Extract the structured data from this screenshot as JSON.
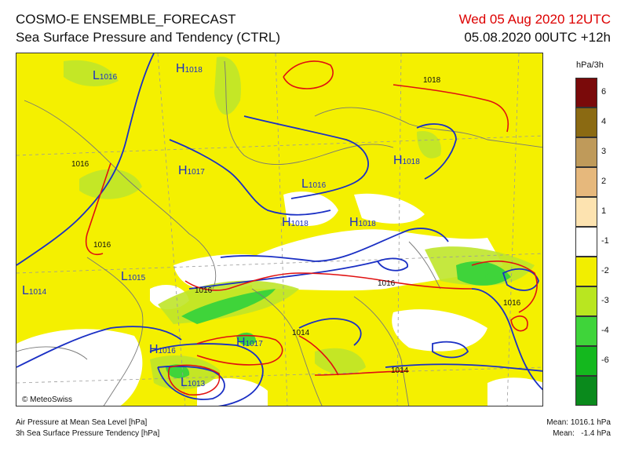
{
  "header": {
    "title": "COSMO-E ENSEMBLE_FORECAST",
    "subtitle": "Sea Surface Pressure and Tendency (CTRL)",
    "valid_time": "Wed 05 Aug 2020 12UTC",
    "run_time": "05.08.2020 00UTC +12h",
    "valid_time_color": "#dd0000"
  },
  "legend": {
    "title": "hPa/3h",
    "classes": [
      {
        "label": "6",
        "color": "#7a0a0a"
      },
      {
        "label": "4",
        "color": "#8b6a12"
      },
      {
        "label": "3",
        "color": "#bf9a5a"
      },
      {
        "label": "2",
        "color": "#e6b87c"
      },
      {
        "label": "1",
        "color": "#fde3b0"
      },
      {
        "label": "-1",
        "color": "#ffffff"
      },
      {
        "label": "-2",
        "color": "#f2ee00"
      },
      {
        "label": "-3",
        "color": "#b9e620"
      },
      {
        "label": "-4",
        "color": "#3fd43a"
      },
      {
        "label": "-6",
        "color": "#14b81e"
      },
      {
        "label": "",
        "color": "#0a8a1c"
      }
    ]
  },
  "map": {
    "pressure_labels": [
      {
        "kind": "H",
        "value": "1018"
      },
      {
        "kind": "L",
        "value": "1016"
      },
      {
        "kind": "H",
        "value": "1017"
      },
      {
        "kind": "L",
        "value": "1016"
      },
      {
        "kind": "H",
        "value": "1018"
      },
      {
        "kind": "H",
        "value": "1018"
      },
      {
        "kind": "H",
        "value": "1018"
      },
      {
        "kind": "L",
        "value": "1015"
      },
      {
        "kind": "L",
        "value": "1014"
      },
      {
        "kind": "H",
        "value": "1016"
      },
      {
        "kind": "H",
        "value": "1017"
      },
      {
        "kind": "L",
        "value": "1013"
      }
    ],
    "isobar_labels": [
      "1018",
      "1016",
      "1016",
      "1016",
      "1016",
      "1016",
      "1014",
      "1014"
    ],
    "colors": {
      "isobar": "#1a2fc4",
      "tendency_contour": "#e01010",
      "border": "#7a7a7a",
      "grid": "#9a9a9a"
    }
  },
  "footer": {
    "line1": "Air Pressure at Mean Sea Level [hPa]",
    "line2": "3h Sea Surface Pressure Tendency [hPa]",
    "mean_pressure": "Mean: 1016.1 hPa",
    "mean_tendency": "Mean:   -1.4 hPa",
    "copyright": "© MeteoSwiss"
  }
}
